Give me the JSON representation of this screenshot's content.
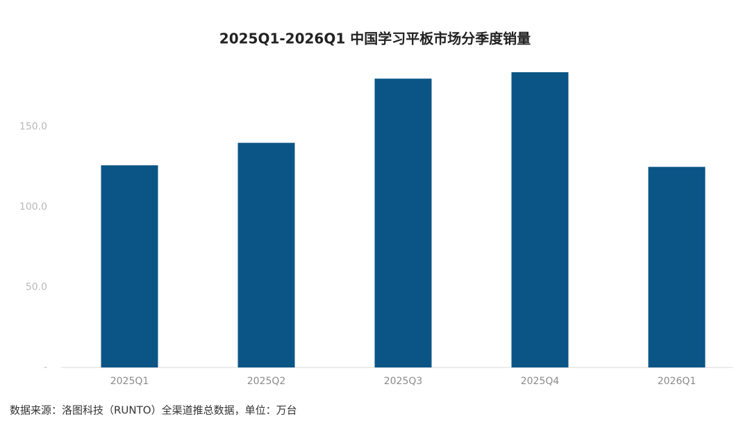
{
  "chart_data": {
    "type": "bar",
    "title": "2025Q1-2026Q1 中国学习平板市场分季度销量",
    "categories": [
      "2025Q1",
      "2025Q2",
      "2025Q3",
      "2025Q4",
      "2026Q1"
    ],
    "values": [
      126,
      140,
      180,
      184,
      125
    ],
    "color": "#0b5586",
    "ylim": [
      0,
      200
    ],
    "yticks": [
      {
        "value": 0,
        "label": "-"
      },
      {
        "value": 50,
        "label": "50.0"
      },
      {
        "value": 100,
        "label": "100.0"
      },
      {
        "value": 150,
        "label": "150.0"
      }
    ],
    "grid": false,
    "note": "数据来源：洛图科技（RUNTO）全渠道推总数据，单位：万台"
  }
}
